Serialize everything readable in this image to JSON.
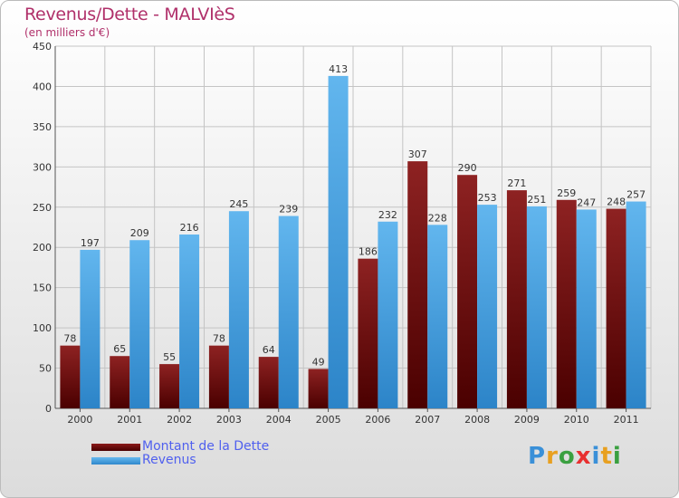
{
  "chart_data": {
    "type": "bar",
    "title": "Revenus/Dette - MALVIèS",
    "subtitle": "(en milliers d'€)",
    "categories": [
      "2000",
      "2001",
      "2002",
      "2003",
      "2004",
      "2005",
      "2006",
      "2007",
      "2008",
      "2009",
      "2010",
      "2011"
    ],
    "series": [
      {
        "name": "Montant de la Dette",
        "values": [
          78,
          65,
          55,
          78,
          64,
          49,
          186,
          307,
          290,
          271,
          259,
          248
        ],
        "color": "#7a1515"
      },
      {
        "name": "Revenus",
        "values": [
          197,
          209,
          216,
          245,
          239,
          413,
          232,
          228,
          253,
          251,
          247,
          257
        ],
        "color": "#4aa3e3"
      }
    ],
    "ylim": [
      0,
      450
    ],
    "yticks": [
      0,
      50,
      100,
      150,
      200,
      250,
      300,
      350,
      400,
      450
    ],
    "grid": true,
    "legend": "bottom-left"
  },
  "logo": {
    "text": "Proxiti"
  }
}
